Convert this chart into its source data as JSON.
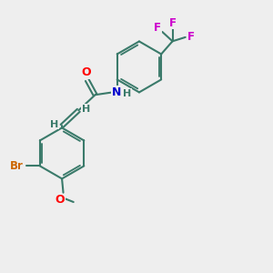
{
  "bg_color": "#eeeeee",
  "bond_color": "#3a7a6a",
  "bond_width": 1.5,
  "atom_colors": {
    "O": "#ff0000",
    "N": "#0000cc",
    "Br": "#cc6600",
    "F": "#cc00cc",
    "C": "#3a7a6a",
    "H": "#3a7a6a"
  },
  "font_size": 9,
  "small_font_size": 7.5,
  "ring_r": 0.95,
  "dbo": 0.065
}
